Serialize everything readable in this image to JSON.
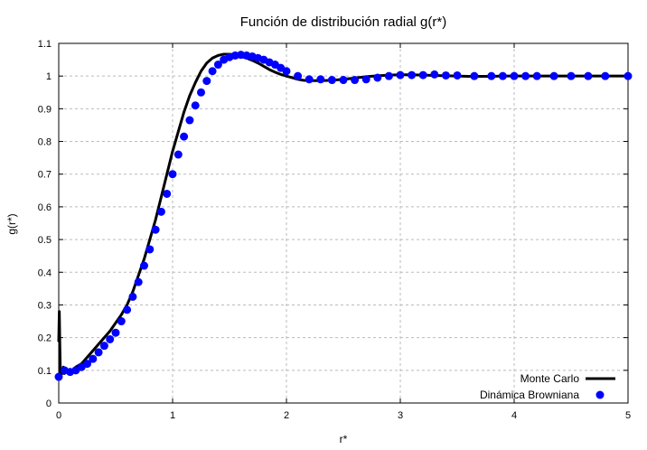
{
  "chart_data": {
    "type": "line",
    "title": "Función de distribución radial g(r*)",
    "xlabel": "r*",
    "ylabel": "g(r*)",
    "xlim": [
      0,
      5
    ],
    "ylim": [
      0,
      1.1
    ],
    "x_ticks": [
      0,
      1,
      2,
      3,
      4,
      5
    ],
    "y_ticks": [
      0,
      0.1,
      0.2,
      0.3,
      0.4,
      0.5,
      0.6,
      0.7,
      0.8,
      0.9,
      1,
      1.1
    ],
    "grid": true,
    "legend_position": "bottom-right",
    "series": [
      {
        "name": "Monte Carlo",
        "style": "line",
        "color": "#000000",
        "x": [
          0.0,
          0.005,
          0.01,
          0.015,
          0.02,
          0.03,
          0.04,
          0.05,
          0.06,
          0.08,
          0.1,
          0.12,
          0.15,
          0.2,
          0.25,
          0.3,
          0.35,
          0.4,
          0.45,
          0.5,
          0.55,
          0.6,
          0.65,
          0.7,
          0.75,
          0.8,
          0.85,
          0.9,
          0.95,
          1.0,
          1.05,
          1.1,
          1.15,
          1.2,
          1.25,
          1.3,
          1.35,
          1.4,
          1.45,
          1.5,
          1.55,
          1.6,
          1.65,
          1.7,
          1.75,
          1.8,
          1.85,
          1.9,
          1.95,
          2.0,
          2.05,
          2.1,
          2.15,
          2.2,
          2.3,
          2.4,
          2.5,
          2.6,
          2.7,
          2.8,
          2.9,
          3.0,
          3.1,
          3.2,
          3.3,
          3.4,
          3.5,
          3.6,
          3.7,
          3.8,
          3.9,
          4.0,
          4.2,
          4.4,
          4.6,
          4.8,
          5.0
        ],
        "values": [
          0.19,
          0.28,
          0.17,
          0.08,
          0.1,
          0.09,
          0.11,
          0.09,
          0.1,
          0.1,
          0.1,
          0.1,
          0.11,
          0.12,
          0.14,
          0.16,
          0.18,
          0.2,
          0.22,
          0.245,
          0.27,
          0.3,
          0.34,
          0.39,
          0.44,
          0.5,
          0.56,
          0.63,
          0.7,
          0.77,
          0.83,
          0.89,
          0.94,
          0.98,
          1.015,
          1.04,
          1.055,
          1.063,
          1.067,
          1.067,
          1.065,
          1.06,
          1.055,
          1.048,
          1.04,
          1.03,
          1.02,
          1.012,
          1.005,
          1.0,
          0.995,
          0.99,
          0.987,
          0.986,
          0.986,
          0.987,
          0.99,
          0.994,
          0.998,
          1.001,
          1.003,
          1.004,
          1.004,
          1.003,
          1.002,
          1.001,
          1.0,
          0.999,
          0.999,
          0.999,
          1.0,
          1.0,
          1.0,
          1.0,
          1.0,
          1.0,
          1.0
        ]
      },
      {
        "name": "Dinámica Browniana",
        "style": "points",
        "color": "#0000ff",
        "x": [
          0.0,
          0.05,
          0.1,
          0.15,
          0.2,
          0.25,
          0.3,
          0.35,
          0.4,
          0.45,
          0.5,
          0.55,
          0.6,
          0.65,
          0.7,
          0.75,
          0.8,
          0.85,
          0.9,
          0.95,
          1.0,
          1.05,
          1.1,
          1.15,
          1.2,
          1.25,
          1.3,
          1.35,
          1.4,
          1.45,
          1.5,
          1.55,
          1.6,
          1.65,
          1.7,
          1.75,
          1.8,
          1.85,
          1.9,
          1.95,
          2.0,
          2.1,
          2.2,
          2.3,
          2.4,
          2.5,
          2.6,
          2.7,
          2.8,
          2.9,
          3.0,
          3.1,
          3.2,
          3.3,
          3.4,
          3.5,
          3.65,
          3.8,
          3.9,
          4.0,
          4.1,
          4.2,
          4.35,
          4.5,
          4.65,
          4.8,
          5.0
        ],
        "values": [
          0.08,
          0.1,
          0.095,
          0.1,
          0.11,
          0.12,
          0.135,
          0.155,
          0.175,
          0.195,
          0.215,
          0.25,
          0.285,
          0.325,
          0.37,
          0.42,
          0.47,
          0.53,
          0.585,
          0.64,
          0.7,
          0.76,
          0.815,
          0.865,
          0.91,
          0.95,
          0.985,
          1.015,
          1.035,
          1.05,
          1.058,
          1.063,
          1.065,
          1.063,
          1.06,
          1.055,
          1.05,
          1.042,
          1.035,
          1.025,
          1.015,
          1.0,
          0.99,
          0.99,
          0.988,
          0.988,
          0.988,
          0.99,
          0.995,
          1.0,
          1.003,
          1.003,
          1.003,
          1.005,
          1.002,
          1.002,
          1.0,
          1.0,
          1.0,
          1.0,
          1.0,
          1.0,
          1.0,
          1.0,
          1.0,
          1.0,
          1.0
        ]
      }
    ]
  }
}
